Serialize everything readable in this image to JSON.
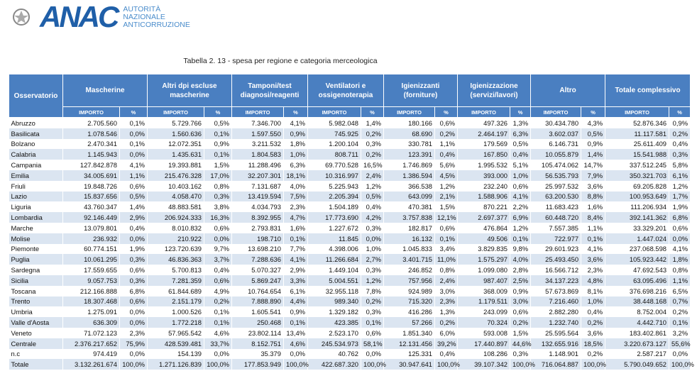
{
  "header": {
    "logo": "ANAC",
    "org_lines": [
      "AUTORITÀ",
      "NAZIONALE",
      "ANTICORRUZIONE"
    ]
  },
  "caption": "Tabella 2. 13 - spesa per regione e categoria merceologica",
  "table": {
    "first_column": "Osservatorio",
    "groups": [
      "Mascherine",
      "Altri dpi escluse mascherine",
      "Tamponi/test diagnosi/reagenti",
      "Ventilatori e ossigenoterapia",
      "Igienizzanti (forniture)",
      "Igienizzazione (servizi/lavori)",
      "Altro",
      "Totale complessivo"
    ],
    "subheaders": [
      "IMPORTO",
      "%",
      "IMPORTO",
      "%",
      "IMPORTO",
      "%",
      "IMPORTO",
      "%",
      "IMPORTO",
      "%",
      "IMPORTO",
      "%",
      "IMPORTO",
      "%",
      "IMPORTO",
      "%"
    ],
    "rows": [
      [
        "Abruzzo",
        "2.705.560",
        "0,1%",
        "5.729.766",
        "0,5%",
        "7.346.700",
        "4,1%",
        "5.982.048",
        "1,4%",
        "180.166",
        "0,6%",
        "497.326",
        "1,3%",
        "30.434.780",
        "4,3%",
        "52.876.346",
        "0,9%"
      ],
      [
        "Basilicata",
        "1.078.546",
        "0,0%",
        "1.560.636",
        "0,1%",
        "1.597.550",
        "0,9%",
        "745.925",
        "0,2%",
        "68.690",
        "0,2%",
        "2.464.197",
        "6,3%",
        "3.602.037",
        "0,5%",
        "11.117.581",
        "0,2%"
      ],
      [
        "Bolzano",
        "2.470.341",
        "0,1%",
        "12.072.351",
        "0,9%",
        "3.211.532",
        "1,8%",
        "1.200.104",
        "0,3%",
        "330.781",
        "1,1%",
        "179.569",
        "0,5%",
        "6.146.731",
        "0,9%",
        "25.611.409",
        "0,4%"
      ],
      [
        "Calabria",
        "1.145.943",
        "0,0%",
        "1.435.631",
        "0,1%",
        "1.804.583",
        "1,0%",
        "808.711",
        "0,2%",
        "123.391",
        "0,4%",
        "167.850",
        "0,4%",
        "10.055.879",
        "1,4%",
        "15.541.988",
        "0,3%"
      ],
      [
        "Campania",
        "127.842.878",
        "4,1%",
        "19.393.881",
        "1,5%",
        "11.288.496",
        "6,3%",
        "69.770.528",
        "16,5%",
        "1.746.869",
        "5,6%",
        "1.995.532",
        "5,1%",
        "105.474.062",
        "14,7%",
        "337.512.245",
        "5,8%"
      ],
      [
        "Emilia",
        "34.005.691",
        "1,1%",
        "215.476.328",
        "17,0%",
        "32.207.301",
        "18,1%",
        "10.316.997",
        "2,4%",
        "1.386.594",
        "4,5%",
        "393.000",
        "1,0%",
        "56.535.793",
        "7,9%",
        "350.321.703",
        "6,1%"
      ],
      [
        "Friuli",
        "19.848.726",
        "0,6%",
        "10.403.162",
        "0,8%",
        "7.131.687",
        "4,0%",
        "5.225.943",
        "1,2%",
        "366.538",
        "1,2%",
        "232.240",
        "0,6%",
        "25.997.532",
        "3,6%",
        "69.205.828",
        "1,2%"
      ],
      [
        "Lazio",
        "15.837.656",
        "0,5%",
        "4.058.470",
        "0,3%",
        "13.419.594",
        "7,5%",
        "2.205.394",
        "0,5%",
        "643.099",
        "2,1%",
        "1.588.906",
        "4,1%",
        "63.200.530",
        "8,8%",
        "100.953.649",
        "1,7%"
      ],
      [
        "Liguria",
        "43.760.347",
        "1,4%",
        "48.883.581",
        "3,8%",
        "4.034.793",
        "2,3%",
        "1.504.189",
        "0,4%",
        "470.381",
        "1,5%",
        "870.221",
        "2,2%",
        "11.683.423",
        "1,6%",
        "111.206.934",
        "1,9%"
      ],
      [
        "Lombardia",
        "92.146.449",
        "2,9%",
        "206.924.333",
        "16,3%",
        "8.392.955",
        "4,7%",
        "17.773.690",
        "4,2%",
        "3.757.838",
        "12,1%",
        "2.697.377",
        "6,9%",
        "60.448.720",
        "8,4%",
        "392.141.362",
        "6,8%"
      ],
      [
        "Marche",
        "13.079.801",
        "0,4%",
        "8.010.832",
        "0,6%",
        "2.793.831",
        "1,6%",
        "1.227.672",
        "0,3%",
        "182.817",
        "0,6%",
        "476.864",
        "1,2%",
        "7.557.385",
        "1,1%",
        "33.329.201",
        "0,6%"
      ],
      [
        "Molise",
        "236.932",
        "0,0%",
        "210.922",
        "0,0%",
        "198.710",
        "0,1%",
        "11.845",
        "0,0%",
        "16.132",
        "0,1%",
        "49.506",
        "0,1%",
        "722.977",
        "0,1%",
        "1.447.024",
        "0,0%"
      ],
      [
        "Piemonte",
        "60.774.151",
        "1,9%",
        "123.720.639",
        "9,7%",
        "13.698.210",
        "7,7%",
        "4.398.006",
        "1,0%",
        "1.045.833",
        "3,4%",
        "3.829.835",
        "9,8%",
        "29.601.923",
        "4,1%",
        "237.068.598",
        "4,1%"
      ],
      [
        "Puglia",
        "10.061.295",
        "0,3%",
        "46.836.363",
        "3,7%",
        "7.288.636",
        "4,1%",
        "11.266.684",
        "2,7%",
        "3.401.715",
        "11,0%",
        "1.575.297",
        "4,0%",
        "25.493.450",
        "3,6%",
        "105.923.442",
        "1,8%"
      ],
      [
        "Sardegna",
        "17.559.655",
        "0,6%",
        "5.700.813",
        "0,4%",
        "5.070.327",
        "2,9%",
        "1.449.104",
        "0,3%",
        "246.852",
        "0,8%",
        "1.099.080",
        "2,8%",
        "16.566.712",
        "2,3%",
        "47.692.543",
        "0,8%"
      ],
      [
        "Sicilia",
        "9.057.753",
        "0,3%",
        "7.281.359",
        "0,6%",
        "5.869.247",
        "3,3%",
        "5.004.551",
        "1,2%",
        "757.956",
        "2,4%",
        "987.407",
        "2,5%",
        "34.137.223",
        "4,8%",
        "63.095.496",
        "1,1%"
      ],
      [
        "Toscana",
        "212.166.888",
        "6,8%",
        "61.844.689",
        "4,9%",
        "10.764.654",
        "6,1%",
        "32.955.118",
        "7,8%",
        "924.989",
        "3,0%",
        "368.009",
        "0,9%",
        "57.673.869",
        "8,1%",
        "376.698.216",
        "6,5%"
      ],
      [
        "Trento",
        "18.307.468",
        "0,6%",
        "2.151.179",
        "0,2%",
        "7.888.890",
        "4,4%",
        "989.340",
        "0,2%",
        "715.320",
        "2,3%",
        "1.179.511",
        "3,0%",
        "7.216.460",
        "1,0%",
        "38.448.168",
        "0,7%"
      ],
      [
        "Umbria",
        "1.275.091",
        "0,0%",
        "1.000.526",
        "0,1%",
        "1.605.541",
        "0,9%",
        "1.329.182",
        "0,3%",
        "416.286",
        "1,3%",
        "243.099",
        "0,6%",
        "2.882.280",
        "0,4%",
        "8.752.004",
        "0,2%"
      ],
      [
        "Valle d'Aosta",
        "636.309",
        "0,0%",
        "1.772.218",
        "0,1%",
        "250.468",
        "0,1%",
        "423.385",
        "0,1%",
        "57.266",
        "0,2%",
        "70.324",
        "0,2%",
        "1.232.740",
        "0,2%",
        "4.442.710",
        "0,1%"
      ],
      [
        "Veneto",
        "71.072.123",
        "2,3%",
        "57.965.542",
        "4,6%",
        "23.802.114",
        "13,4%",
        "2.523.170",
        "0,6%",
        "1.851.340",
        "6,0%",
        "593.008",
        "1,5%",
        "25.595.564",
        "3,6%",
        "183.402.861",
        "3,2%"
      ],
      [
        "Centrale",
        "2.376.217.652",
        "75,9%",
        "428.539.481",
        "33,7%",
        "8.152.751",
        "4,6%",
        "245.534.973",
        "58,1%",
        "12.131.456",
        "39,2%",
        "17.440.897",
        "44,6%",
        "132.655.916",
        "18,5%",
        "3.220.673.127",
        "55,6%"
      ],
      [
        "n.c",
        "974.419",
        "0,0%",
        "154.139",
        "0,0%",
        "35.379",
        "0,0%",
        "40.762",
        "0,0%",
        "125.331",
        "0,4%",
        "108.286",
        "0,3%",
        "1.148.901",
        "0,2%",
        "2.587.217",
        "0,0%"
      ],
      [
        "Totale",
        "3.132.261.674",
        "100,0%",
        "1.271.126.839",
        "100,0%",
        "177.853.949",
        "100,0%",
        "422.687.320",
        "100,0%",
        "30.947.641",
        "100,0%",
        "39.107.342",
        "100,0%",
        "716.064.887",
        "100,0%",
        "5.790.049.652",
        "100,0%"
      ]
    ]
  }
}
